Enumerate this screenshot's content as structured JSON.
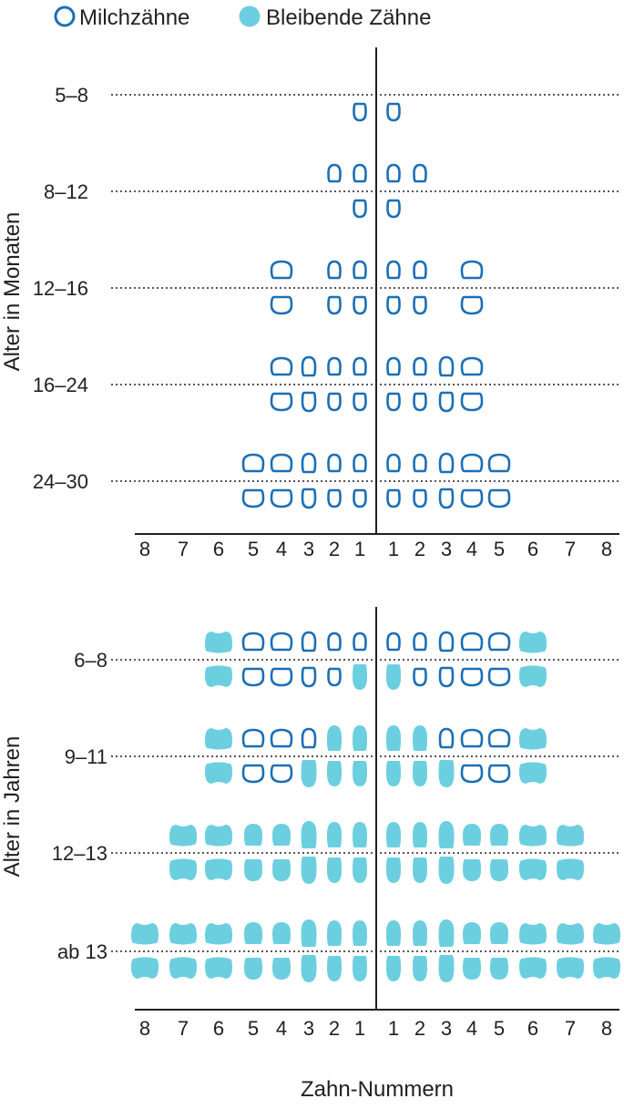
{
  "legend": {
    "milk_label": "Milchzähne",
    "permanent_label": "Bleibende Zähne"
  },
  "colors": {
    "milk_outline": "#1b6fb5",
    "permanent_fill": "#6ccfe0",
    "axis": "#231f20",
    "gridline": "#231f20"
  },
  "x_axis_label": "Zahn-Nummern",
  "tooth_numbers": [
    "8",
    "7",
    "6",
    "5",
    "4",
    "3",
    "2",
    "1",
    "1",
    "2",
    "3",
    "4",
    "5",
    "6",
    "7",
    "8"
  ],
  "top_panel": {
    "y_label": "Alter in Monaten",
    "rows": [
      {
        "label": "5–8",
        "upper": [],
        "lower": [
          "m",
          "m"
        ],
        "lower_positions": [
          1,
          1
        ]
      },
      {
        "label": "8–12",
        "upper": [],
        "lower": []
      },
      {
        "label": "12–16",
        "upper": [],
        "lower": []
      },
      {
        "label": "16–24",
        "upper": [],
        "lower": []
      },
      {
        "label": "24–30",
        "upper": [],
        "lower": []
      }
    ],
    "grid": [
      {
        "label": "5–8",
        "upper": "--------------------",
        "lower": ""
      },
      {
        "label": "8–12",
        "upper": "",
        "lower": ""
      },
      {
        "label": "12–16",
        "upper": "",
        "lower": ""
      },
      {
        "label": "16–24",
        "upper": "",
        "lower": ""
      },
      {
        "label": "24–30",
        "upper": "",
        "lower": ""
      }
    ]
  },
  "bottom_panel": {
    "y_label": "Alter in Jahren",
    "rows": [
      {
        "label": "6–8"
      },
      {
        "label": "9–11"
      },
      {
        "label": "12–13"
      },
      {
        "label": "ab 13"
      }
    ]
  },
  "chart_data": {
    "type": "table",
    "columns_left_to_right": [
      "8",
      "7",
      "6",
      "5",
      "4",
      "3",
      "2",
      "1",
      "1",
      "2",
      "3",
      "4",
      "5",
      "6",
      "7",
      "8"
    ],
    "legend": [
      "Milchzähne",
      "Bleibende Zähne"
    ],
    "codes": {
      "m": "Milchzahn",
      "p": "Bleibender Zahn",
      "": "kein Zahn"
    },
    "panels": [
      {
        "y_label": "Alter in Monaten",
        "stages": [
          {
            "label": "5–8",
            "upper": [
              "",
              "",
              "",
              "",
              "",
              "",
              "",
              "",
              "",
              "",
              "",
              "",
              "",
              "",
              "",
              ""
            ],
            "lower": [
              "",
              "",
              "",
              "",
              "",
              "",
              "",
              "m",
              "m",
              "",
              "",
              "",
              "",
              "",
              "",
              ""
            ]
          },
          {
            "label": "8–12",
            "upper": [
              "",
              "",
              "",
              "",
              "",
              "",
              "m",
              "m",
              "m",
              "m",
              "",
              "",
              "",
              "",
              "",
              ""
            ],
            "lower": [
              "",
              "",
              "",
              "",
              "",
              "",
              "",
              "m",
              "m",
              "",
              "",
              "",
              "",
              "",
              "",
              ""
            ]
          },
          {
            "label": "12–16",
            "upper": [
              "",
              "",
              "",
              "",
              "m",
              "",
              "m",
              "m",
              "m",
              "m",
              "",
              "m",
              "",
              "",
              "",
              ""
            ],
            "lower": [
              "",
              "",
              "",
              "",
              "m",
              "",
              "m",
              "m",
              "m",
              "m",
              "",
              "m",
              "",
              "",
              "",
              ""
            ]
          },
          {
            "label": "16–24",
            "upper": [
              "",
              "",
              "",
              "",
              "m",
              "m",
              "m",
              "m",
              "m",
              "m",
              "m",
              "m",
              "",
              "",
              "",
              ""
            ],
            "lower": [
              "",
              "",
              "",
              "",
              "m",
              "m",
              "m",
              "m",
              "m",
              "m",
              "m",
              "m",
              "",
              "",
              "",
              ""
            ]
          },
          {
            "label": "24–30",
            "upper": [
              "",
              "",
              "",
              "m",
              "m",
              "m",
              "m",
              "m",
              "m",
              "m",
              "m",
              "m",
              "m",
              "",
              "",
              ""
            ],
            "lower": [
              "",
              "",
              "",
              "m",
              "m",
              "m",
              "m",
              "m",
              "m",
              "m",
              "m",
              "m",
              "m",
              "",
              "",
              ""
            ]
          }
        ]
      },
      {
        "y_label": "Alter in Jahren",
        "stages": [
          {
            "label": "6–8",
            "upper": [
              "",
              "",
              "p",
              "m",
              "m",
              "m",
              "m",
              "m",
              "m",
              "m",
              "m",
              "m",
              "m",
              "p",
              "",
              ""
            ],
            "lower": [
              "",
              "",
              "p",
              "m",
              "m",
              "m",
              "m",
              "p",
              "p",
              "m",
              "m",
              "m",
              "m",
              "p",
              "",
              ""
            ]
          },
          {
            "label": "9–11",
            "upper": [
              "",
              "",
              "p",
              "m",
              "m",
              "m",
              "p",
              "p",
              "p",
              "p",
              "m",
              "m",
              "m",
              "p",
              "",
              ""
            ],
            "lower": [
              "",
              "",
              "p",
              "m",
              "m",
              "p",
              "p",
              "p",
              "p",
              "p",
              "p",
              "m",
              "m",
              "p",
              "",
              ""
            ]
          },
          {
            "label": "12–13",
            "upper": [
              "",
              "p",
              "p",
              "p",
              "p",
              "p",
              "p",
              "p",
              "p",
              "p",
              "p",
              "p",
              "p",
              "p",
              "p",
              ""
            ],
            "lower": [
              "",
              "p",
              "p",
              "p",
              "p",
              "p",
              "p",
              "p",
              "p",
              "p",
              "p",
              "p",
              "p",
              "p",
              "p",
              ""
            ]
          },
          {
            "label": "ab 13",
            "upper": [
              "p",
              "p",
              "p",
              "p",
              "p",
              "p",
              "p",
              "p",
              "p",
              "p",
              "p",
              "p",
              "p",
              "p",
              "p",
              "p"
            ],
            "lower": [
              "p",
              "p",
              "p",
              "p",
              "p",
              "p",
              "p",
              "p",
              "p",
              "p",
              "p",
              "p",
              "p",
              "p",
              "p",
              "p"
            ]
          }
        ]
      }
    ]
  }
}
